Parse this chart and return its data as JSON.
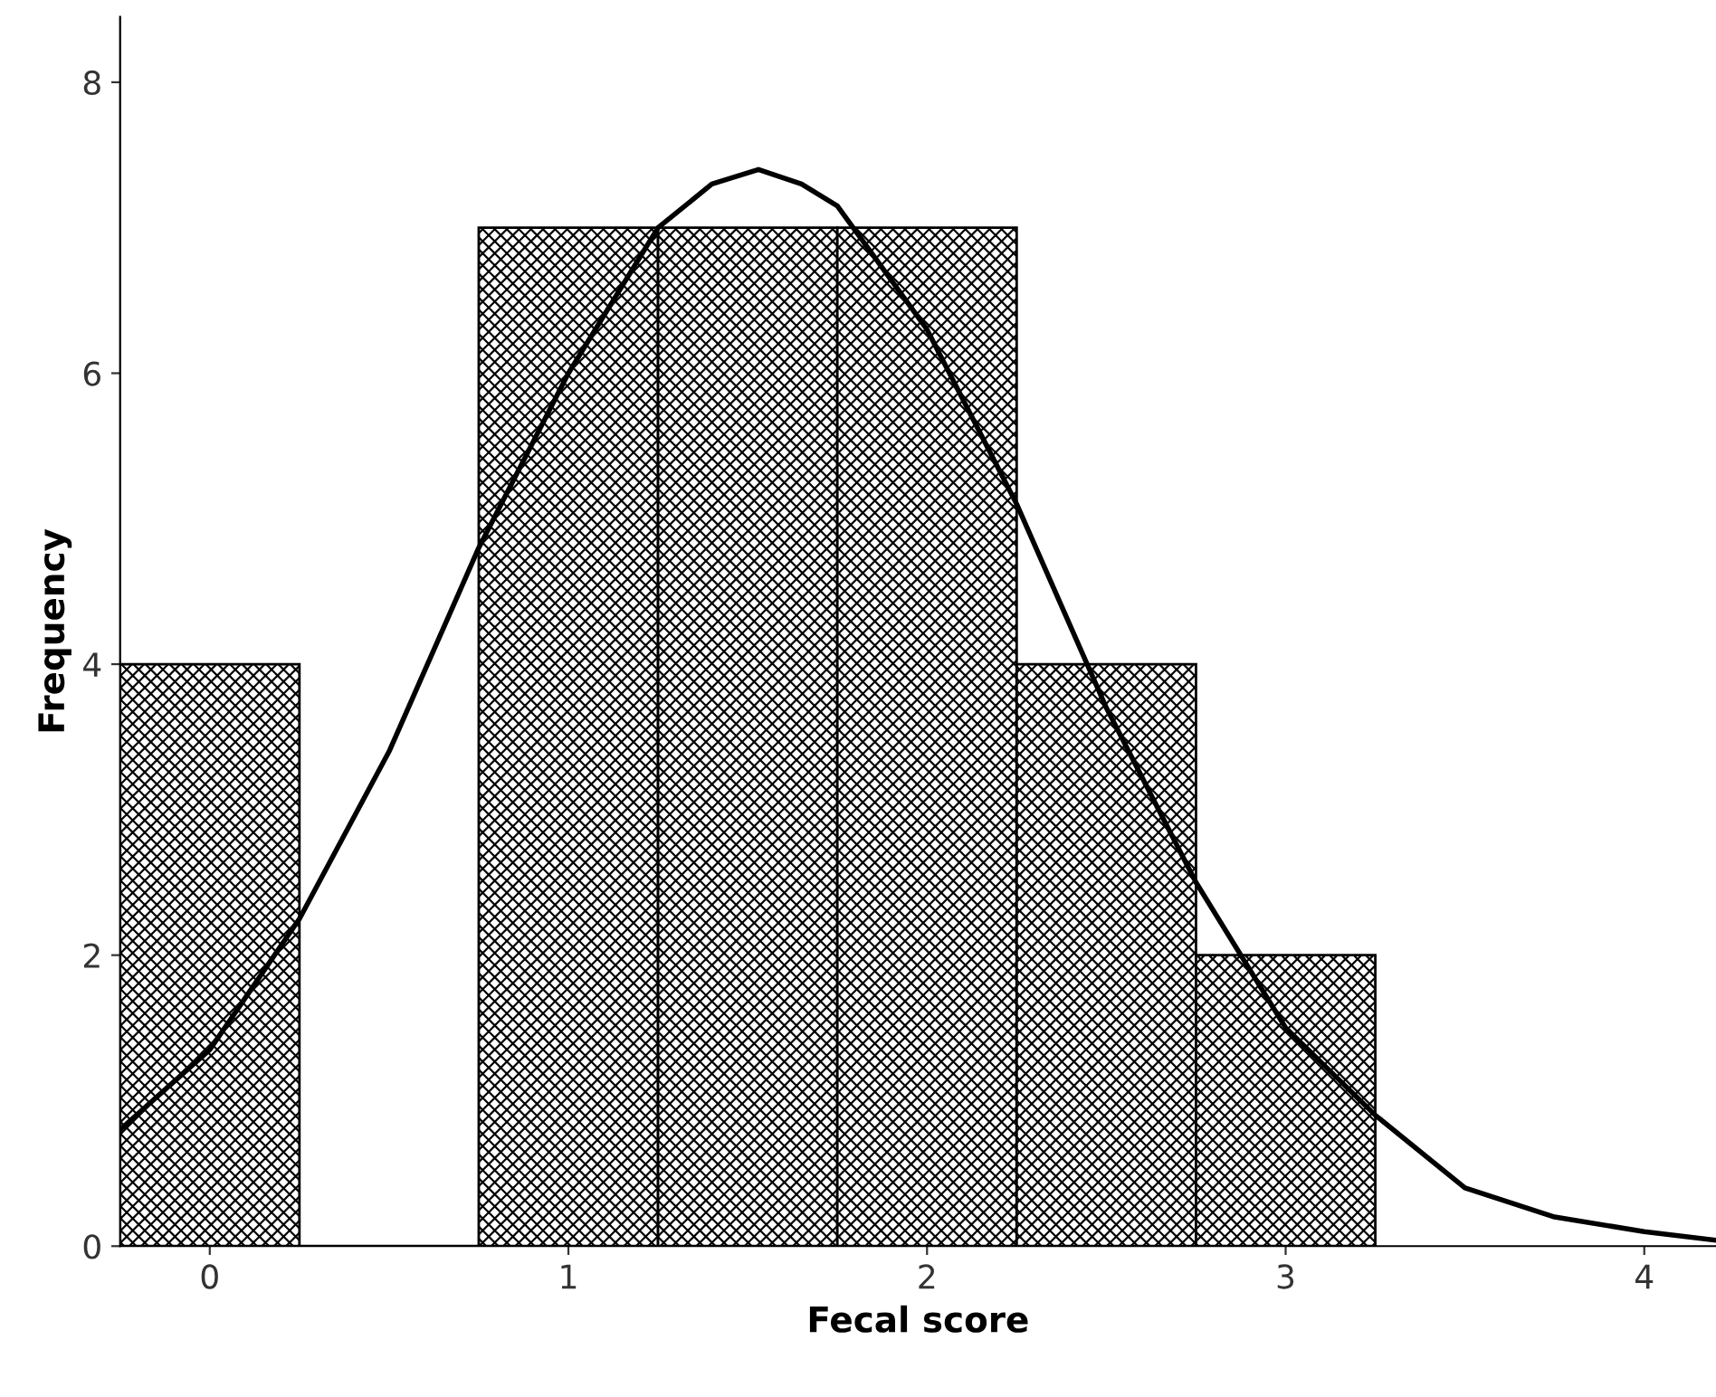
{
  "chart_data": {
    "type": "histogram",
    "xlabel": "Fecal score",
    "ylabel": "Frequency",
    "series": [
      {
        "bins": [
          -0.25,
          0.25,
          0.75,
          1.25,
          1.75,
          2.25,
          2.75,
          3.25
        ],
        "values": [
          4,
          0,
          7,
          7,
          7,
          4,
          2
        ],
        "color": "#000000"
      },
      {
        "type": "line",
        "x": [
          -0.25,
          0,
          0.25,
          0.5,
          0.75,
          1.0,
          1.25,
          1.4,
          1.53,
          1.65,
          1.75,
          2.0,
          2.25,
          2.5,
          2.75,
          3.0,
          3.25,
          3.5,
          3.75,
          4.0,
          4.2
        ],
        "values": [
          0.8,
          1.35,
          2.25,
          3.4,
          4.8,
          6.0,
          7.0,
          7.3,
          7.4,
          7.3,
          7.15,
          6.3,
          5.1,
          3.7,
          2.5,
          1.5,
          0.9,
          0.4,
          0.2,
          0.1,
          0.04
        ],
        "color": "#000000"
      }
    ],
    "xlim": [
      -0.25,
      4.2
    ],
    "ylim": [
      0,
      8.45
    ],
    "xticks": [
      0,
      1,
      2,
      3,
      4
    ],
    "yticks": [
      0,
      2,
      4,
      6,
      8
    ],
    "grid": false,
    "legend": false
  }
}
